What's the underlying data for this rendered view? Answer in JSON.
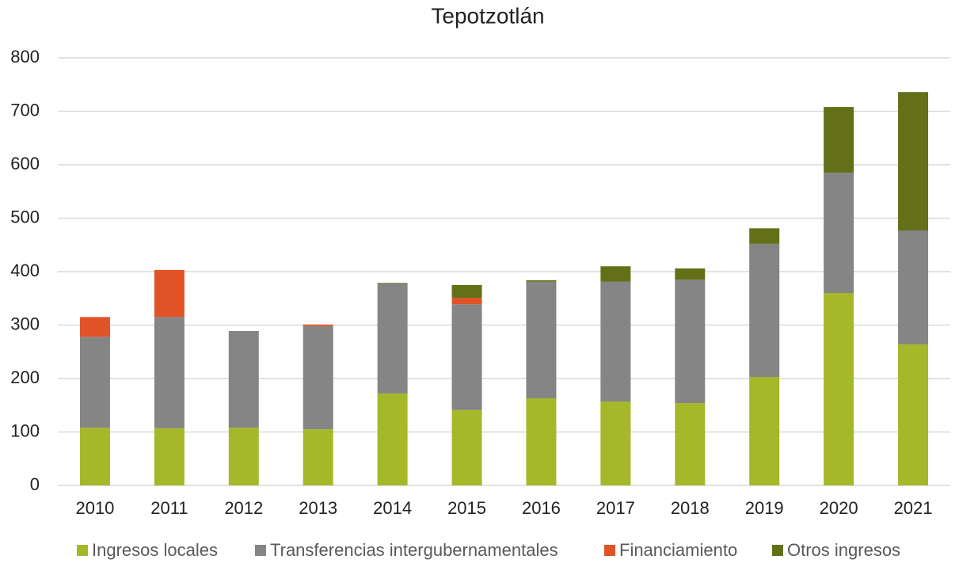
{
  "chart_data": {
    "type": "stacked_bar",
    "title": "Tepotzotlán",
    "categories": [
      "2010",
      "2011",
      "2012",
      "2013",
      "2014",
      "2015",
      "2016",
      "2017",
      "2018",
      "2019",
      "2020",
      "2021"
    ],
    "series": [
      {
        "name": "Ingresos locales",
        "color": "#a5b82a",
        "values": [
          108,
          107,
          108,
          105,
          172,
          141,
          163,
          157,
          154,
          203,
          360,
          264
        ]
      },
      {
        "name": "Transferencias intergubernamentales",
        "color": "#858585",
        "values": [
          170,
          208,
          181,
          193,
          206,
          198,
          218,
          224,
          231,
          249,
          225,
          213
        ]
      },
      {
        "name": "Financiamiento",
        "color": "#e05327",
        "values": [
          37,
          88,
          0,
          3,
          0,
          12,
          0,
          0,
          0,
          0,
          0,
          0
        ]
      },
      {
        "name": "Otros ingresos",
        "color": "#647018",
        "values": [
          0,
          0,
          0,
          0,
          1,
          24,
          3,
          29,
          21,
          29,
          123,
          259
        ]
      }
    ],
    "ylim": [
      0,
      800
    ],
    "yticks": [
      0,
      100,
      200,
      300,
      400,
      500,
      600,
      700,
      800
    ],
    "grid": true,
    "legend": "bottom"
  }
}
